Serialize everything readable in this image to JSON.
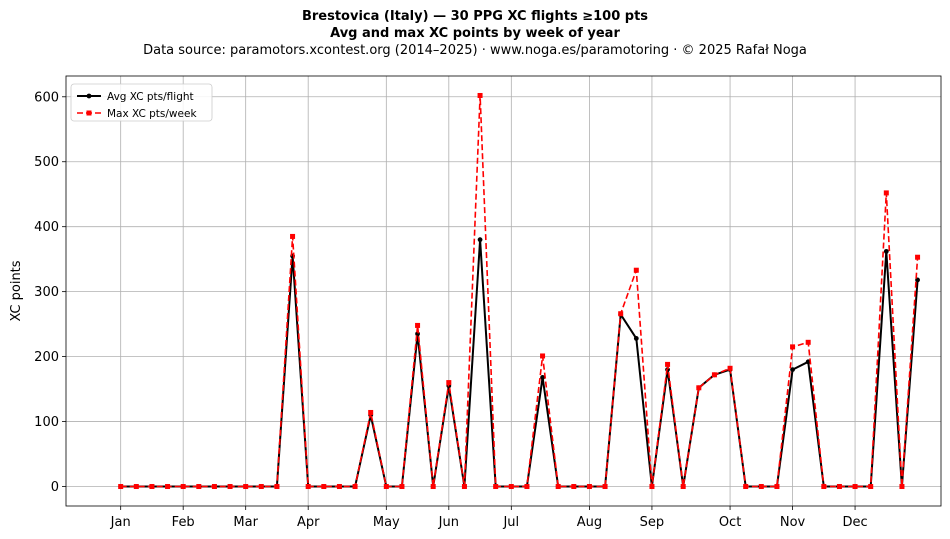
{
  "header": {
    "title_line1": "Brestovica (Italy)  —  30 PPG XC flights ≥100 pts",
    "title_line2": "Avg and max XC points by week of year",
    "subtitle": "Data source: paramotors.xcontest.org (2014–2025)  ·  www.noga.es/paramotoring  ·  © 2025 Rafał Noga"
  },
  "chart_data": {
    "type": "line",
    "title": "Brestovica (Italy)  —  30 PPG XC flights ≥100 pts",
    "subtitle": "Avg and max XC points by week of year",
    "xlabel": "",
    "ylabel": "XC points",
    "xlim": [
      -2.5,
      53.5
    ],
    "ylim": [
      -30,
      632
    ],
    "grid": true,
    "legend_position": "top-left",
    "x": [
      1,
      2,
      3,
      4,
      5,
      6,
      7,
      8,
      9,
      10,
      11,
      12,
      13,
      14,
      15,
      16,
      17,
      18,
      19,
      20,
      21,
      22,
      23,
      24,
      25,
      26,
      27,
      28,
      29,
      30,
      31,
      32,
      33,
      34,
      35,
      36,
      37,
      38,
      39,
      40,
      41,
      42,
      43,
      44,
      45,
      46,
      47,
      48,
      49,
      50,
      51,
      52
    ],
    "x_ticks": [
      {
        "label": "Jan",
        "x": 1
      },
      {
        "label": "Feb",
        "x": 5
      },
      {
        "label": "Mar",
        "x": 9
      },
      {
        "label": "Apr",
        "x": 13
      },
      {
        "label": "May",
        "x": 18
      },
      {
        "label": "Jun",
        "x": 22
      },
      {
        "label": "Jul",
        "x": 26
      },
      {
        "label": "Aug",
        "x": 31
      },
      {
        "label": "Sep",
        "x": 35
      },
      {
        "label": "Oct",
        "x": 40
      },
      {
        "label": "Nov",
        "x": 44
      },
      {
        "label": "Dec",
        "x": 48
      }
    ],
    "y_ticks": [
      0,
      100,
      200,
      300,
      400,
      500,
      600
    ],
    "series": [
      {
        "name": "Avg XC pts/flight",
        "color": "#000000",
        "style": "solid",
        "marker": "circle",
        "values": [
          0,
          0,
          0,
          0,
          0,
          0,
          0,
          0,
          0,
          0,
          0,
          355,
          0,
          0,
          0,
          0,
          110,
          0,
          0,
          235,
          0,
          155,
          0,
          380,
          0,
          0,
          0,
          168,
          0,
          0,
          0,
          0,
          265,
          228,
          0,
          180,
          0,
          152,
          172,
          180,
          0,
          0,
          0,
          180,
          192,
          0,
          0,
          0,
          0,
          362,
          0,
          318
        ]
      },
      {
        "name": "Max XC pts/week",
        "color": "#ff0000",
        "style": "dashed",
        "marker": "square",
        "values": [
          0,
          0,
          0,
          0,
          0,
          0,
          0,
          0,
          0,
          0,
          0,
          385,
          0,
          0,
          0,
          0,
          114,
          0,
          0,
          248,
          0,
          160,
          0,
          602,
          0,
          0,
          0,
          201,
          0,
          0,
          0,
          0,
          266,
          333,
          0,
          188,
          0,
          152,
          172,
          182,
          0,
          0,
          0,
          215,
          222,
          0,
          0,
          0,
          0,
          452,
          0,
          353
        ]
      }
    ]
  }
}
